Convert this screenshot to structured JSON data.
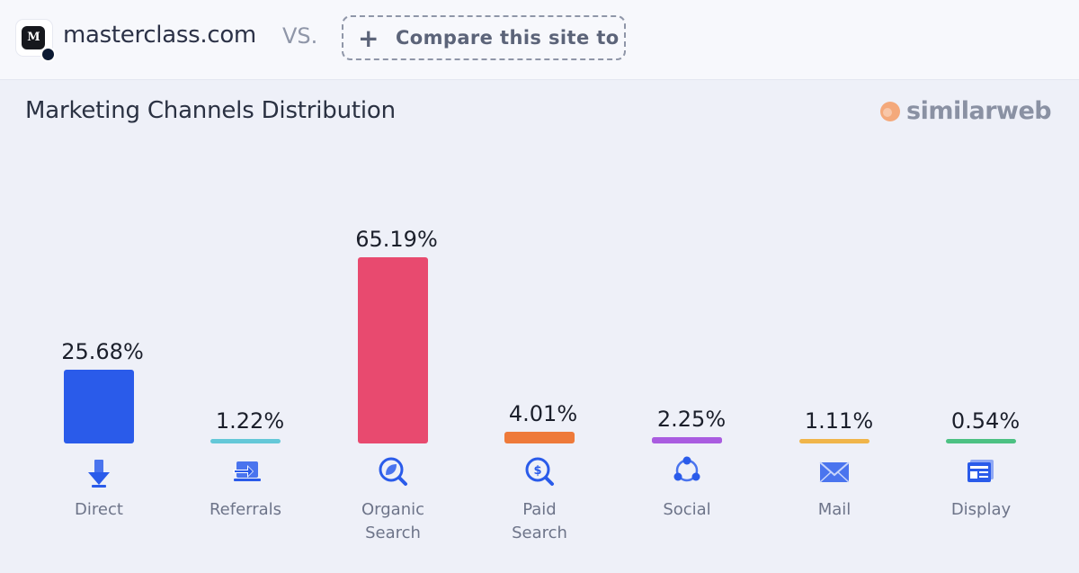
{
  "header": {
    "site_name": "masterclass.com",
    "vs_label": "VS.",
    "compare_label": "Compare this site to",
    "compare_icon": "plus-icon",
    "site_logo_icon": "masterclass-logo-icon"
  },
  "title": "Marketing Channels Distribution",
  "brand": {
    "name": "similarweb",
    "icon": "similarweb-logo-icon"
  },
  "chart_data": {
    "type": "bar",
    "categories": [
      "Direct",
      "Referrals",
      "Organic\nSearch",
      "Paid\nSearch",
      "Social",
      "Mail",
      "Display"
    ],
    "values": [
      25.68,
      1.22,
      65.19,
      4.01,
      2.25,
      1.11,
      0.54
    ],
    "value_labels": [
      "25.68%",
      "1.22%",
      "65.19%",
      "4.01%",
      "2.25%",
      "1.11%",
      "0.54%"
    ],
    "colors": [
      "#2a5bea",
      "#64c8d8",
      "#e84a6f",
      "#ee7a3a",
      "#a95ce0",
      "#f0b54a",
      "#4cc183"
    ],
    "icons": [
      "direct-arrow-icon",
      "referrals-icon",
      "organic-search-icon",
      "paid-search-icon",
      "social-icon",
      "mail-icon",
      "display-icon"
    ],
    "ylim": [
      0,
      65.19
    ],
    "grid": false,
    "legend": "none"
  }
}
